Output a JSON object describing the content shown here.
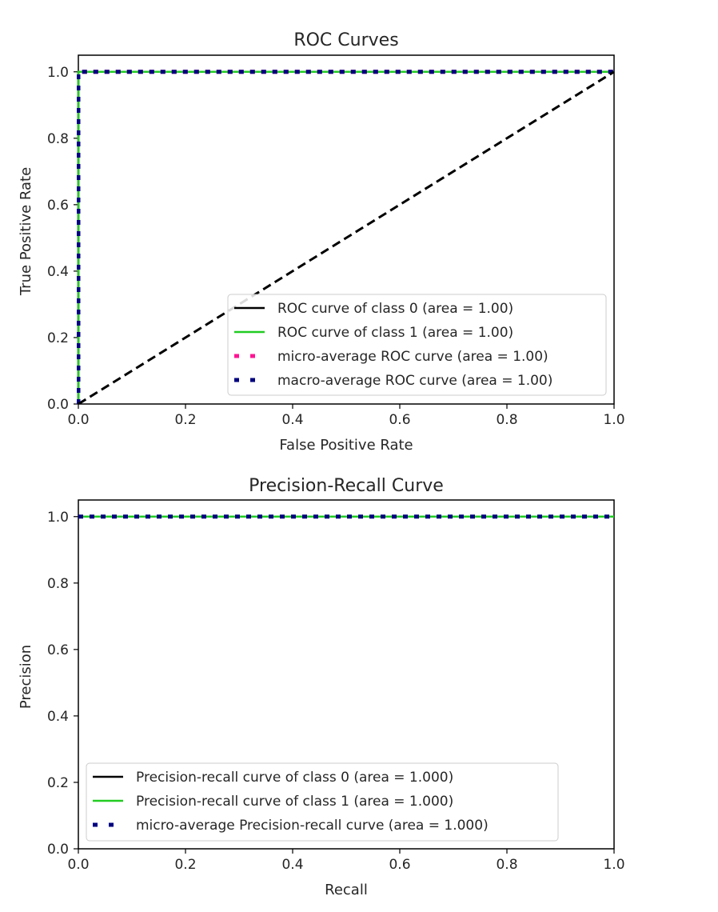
{
  "chart_data": [
    {
      "type": "line",
      "title": "ROC Curves",
      "xlabel": "False Positive Rate",
      "ylabel": "True Positive Rate",
      "xlim": [
        0.0,
        1.0
      ],
      "ylim": [
        0.0,
        1.05
      ],
      "xticks": [
        "0.0",
        "0.2",
        "0.4",
        "0.6",
        "0.8",
        "1.0"
      ],
      "yticks": [
        "0.0",
        "0.2",
        "0.4",
        "0.6",
        "0.8",
        "1.0"
      ],
      "legend_position": "lower-right",
      "grid": false,
      "series": [
        {
          "name": "ROC curve of class 0 (area = 1.00)",
          "color": "#000000",
          "style": "solid",
          "x": [
            0.0,
            0.0,
            1.0
          ],
          "y": [
            0.0,
            1.0,
            1.0
          ]
        },
        {
          "name": "ROC curve of class 1 (area = 1.00)",
          "color": "#22cc22",
          "style": "solid",
          "x": [
            0.0,
            0.0,
            1.0
          ],
          "y": [
            0.0,
            1.0,
            1.0
          ]
        },
        {
          "name": "micro-average ROC curve (area = 1.00)",
          "color": "#ff1493",
          "style": "dotted",
          "x": [
            0.0,
            0.0,
            1.0
          ],
          "y": [
            0.0,
            1.0,
            1.0
          ]
        },
        {
          "name": "macro-average ROC curve (area = 1.00)",
          "color": "#000080",
          "style": "dotted",
          "x": [
            0.0,
            0.0,
            1.0
          ],
          "y": [
            0.0,
            1.0,
            1.0
          ]
        }
      ],
      "reference_line": {
        "x": [
          0.0,
          1.0
        ],
        "y": [
          0.0,
          1.0
        ],
        "color": "#000000",
        "style": "dashed"
      }
    },
    {
      "type": "line",
      "title": "Precision-Recall Curve",
      "xlabel": "Recall",
      "ylabel": "Precision",
      "xlim": [
        0.0,
        1.0
      ],
      "ylim": [
        0.0,
        1.05
      ],
      "xticks": [
        "0.0",
        "0.2",
        "0.4",
        "0.6",
        "0.8",
        "1.0"
      ],
      "yticks": [
        "0.0",
        "0.2",
        "0.4",
        "0.6",
        "0.8",
        "1.0"
      ],
      "legend_position": "lower-left",
      "grid": false,
      "series": [
        {
          "name": "Precision-recall curve of class 0 (area = 1.000)",
          "color": "#000000",
          "style": "solid",
          "x": [
            0.0,
            1.0
          ],
          "y": [
            1.0,
            1.0
          ]
        },
        {
          "name": "Precision-recall curve of class 1 (area = 1.000)",
          "color": "#22cc22",
          "style": "solid",
          "x": [
            0.0,
            1.0
          ],
          "y": [
            1.0,
            1.0
          ]
        },
        {
          "name": "micro-average Precision-recall curve (area = 1.000)",
          "color": "#000080",
          "style": "dotted",
          "x": [
            0.0,
            1.0
          ],
          "y": [
            1.0,
            1.0
          ]
        }
      ]
    }
  ]
}
